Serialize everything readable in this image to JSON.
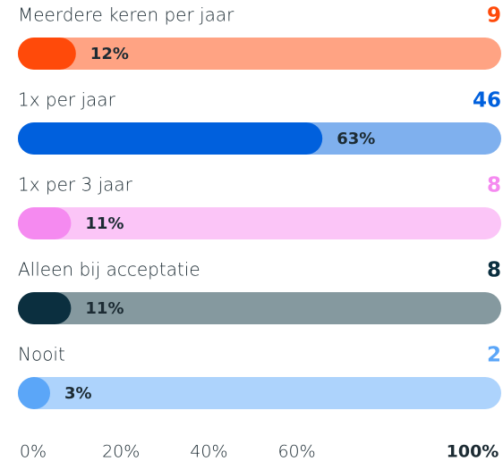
{
  "chart_data": {
    "type": "bar",
    "categories": [
      "Meerdere keren per jaar",
      "1x per jaar",
      "1x per 3 jaar",
      "Alleen bij acceptatie",
      "Nooit"
    ],
    "values": [
      12,
      63,
      11,
      11,
      3
    ],
    "value_labels": [
      "12%",
      "63%",
      "11%",
      "11%",
      "3%"
    ],
    "counts": [
      9,
      46,
      8,
      8,
      2
    ],
    "colors": [
      "#ff4a0a",
      "#0060dd",
      "#f58af0",
      "#0b2f3f",
      "#5ba6f8"
    ],
    "track_colors": [
      "#ffa383",
      "#7fb0ee",
      "#fbc5f7",
      "#85999f",
      "#add3fc"
    ],
    "xlim": [
      0,
      100
    ],
    "xticks": [
      {
        "value": 0,
        "label": "0%"
      },
      {
        "value": 20,
        "label": "20%"
      },
      {
        "value": 40,
        "label": "40%"
      },
      {
        "value": 60,
        "label": "60%"
      },
      {
        "value": 100,
        "label": "100%"
      }
    ]
  }
}
